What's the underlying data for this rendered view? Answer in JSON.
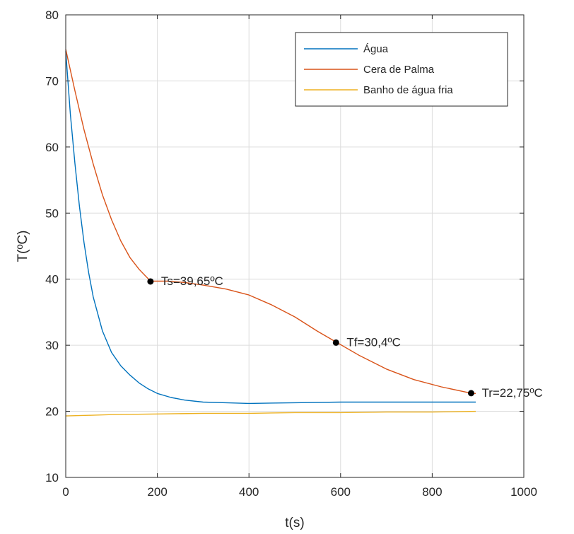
{
  "chart_data": {
    "type": "line",
    "title": "",
    "xlabel": "t(s)",
    "ylabel": "T(ºC)",
    "xlim": [
      0,
      1000
    ],
    "ylim": [
      10,
      80
    ],
    "xticks": [
      0,
      200,
      400,
      600,
      800,
      1000
    ],
    "yticks": [
      10,
      20,
      30,
      40,
      50,
      60,
      70,
      80
    ],
    "xtick_labels": [
      "0",
      "200",
      "400",
      "600",
      "800",
      "1000"
    ],
    "ytick_labels": [
      "10",
      "20",
      "30",
      "40",
      "50",
      "60",
      "70",
      "80"
    ],
    "grid": true,
    "legend_position": "top-right",
    "series": [
      {
        "name": "Água",
        "color": "#0072BD",
        "x": [
          0,
          10,
          20,
          30,
          40,
          50,
          60,
          80,
          100,
          120,
          140,
          160,
          180,
          200,
          230,
          260,
          300,
          350,
          400,
          500,
          600,
          700,
          800,
          895
        ],
        "y": [
          74.5,
          65.0,
          57.5,
          51.0,
          45.5,
          41.0,
          37.3,
          32.2,
          28.9,
          26.9,
          25.5,
          24.3,
          23.4,
          22.7,
          22.1,
          21.7,
          21.4,
          21.3,
          21.2,
          21.3,
          21.4,
          21.4,
          21.4,
          21.4
        ]
      },
      {
        "name": "Cera de Palma",
        "color": "#D95319",
        "x": [
          0,
          20,
          40,
          60,
          80,
          100,
          120,
          140,
          160,
          185,
          220,
          260,
          300,
          350,
          400,
          450,
          500,
          550,
          590,
          640,
          700,
          760,
          820,
          885,
          895
        ],
        "y": [
          74.8,
          68.5,
          62.6,
          57.4,
          52.8,
          49.0,
          45.8,
          43.3,
          41.5,
          39.7,
          39.7,
          39.5,
          39.1,
          38.5,
          37.6,
          36.1,
          34.3,
          32.1,
          30.5,
          28.5,
          26.4,
          24.8,
          23.7,
          22.75,
          22.7
        ]
      },
      {
        "name": "Banho de água fria",
        "color": "#EDB120",
        "x": [
          0,
          50,
          100,
          200,
          300,
          400,
          500,
          600,
          700,
          800,
          895
        ],
        "y": [
          19.3,
          19.4,
          19.5,
          19.6,
          19.7,
          19.7,
          19.8,
          19.8,
          19.9,
          19.9,
          20.0
        ]
      }
    ],
    "markers": [
      {
        "label": "Ts=39,65ºC",
        "x": 185,
        "y": 39.65
      },
      {
        "label": "Tf=30,4ºC",
        "x": 590,
        "y": 30.4
      },
      {
        "label": "Tr=22,75ºC",
        "x": 885,
        "y": 22.75
      }
    ]
  }
}
